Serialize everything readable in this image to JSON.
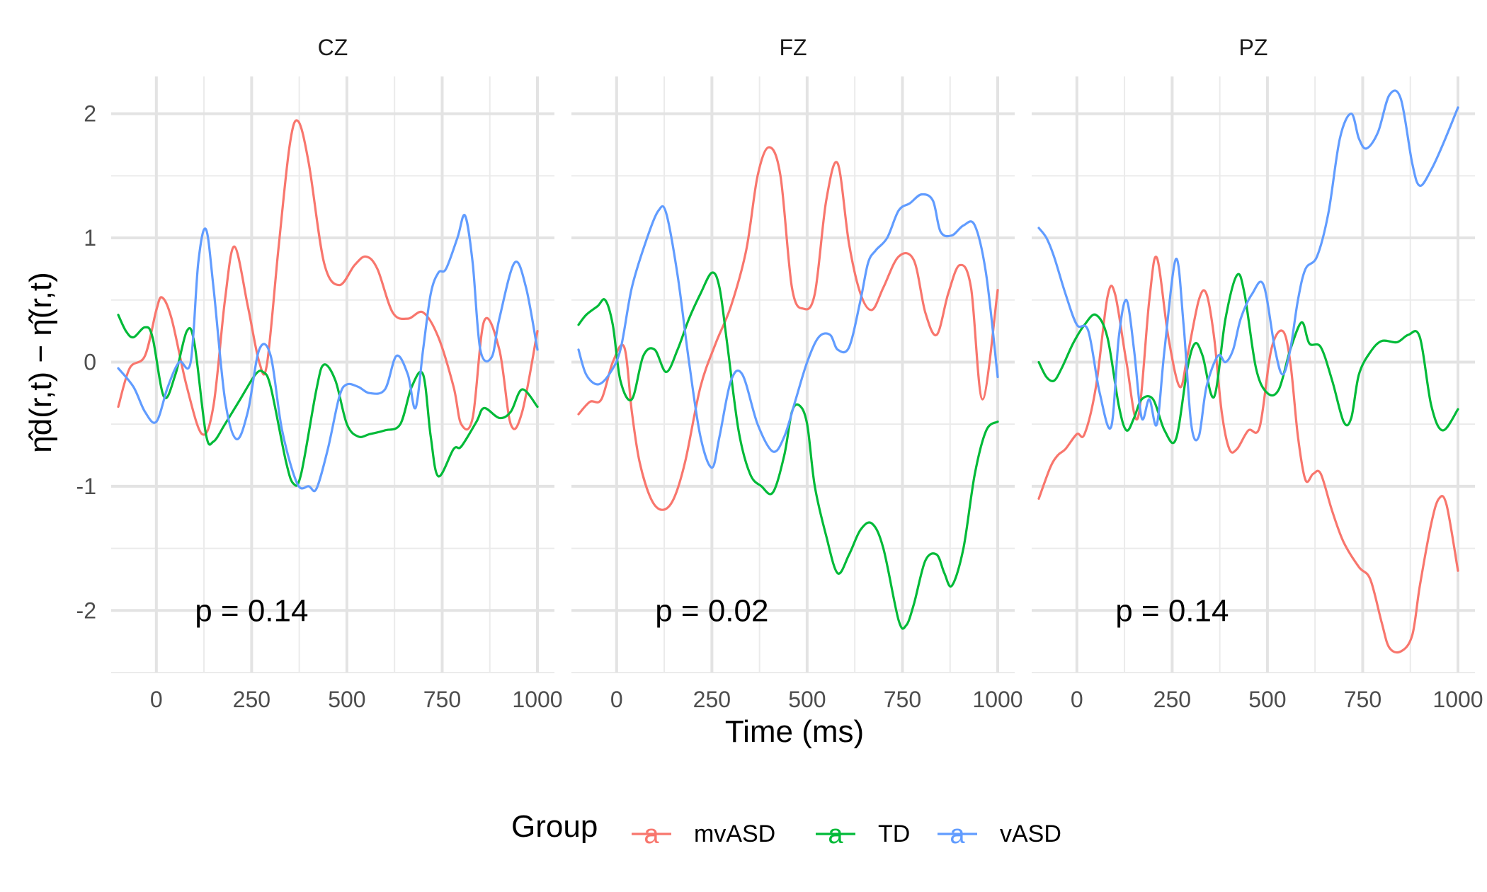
{
  "chart_data": {
    "type": "line",
    "facets": [
      "CZ",
      "FZ",
      "PZ"
    ],
    "xlabel": "Time (ms)",
    "ylabel": "η̂d(r,t) − η̂(r,t)",
    "xlim": [
      -100,
      1000
    ],
    "ylim": [
      -2.5,
      2.3
    ],
    "xticks": [
      0,
      250,
      500,
      750,
      1000
    ],
    "yticks": [
      -2,
      -1,
      0,
      1,
      2
    ],
    "grid": true,
    "legend": {
      "title": "Group",
      "position": "bottom",
      "key_glyph": "a"
    },
    "colors": {
      "mvASD": "#F8766D",
      "TD": "#00BA38",
      "vASD": "#619CFF"
    },
    "annotations": [
      {
        "facet": "CZ",
        "text": "p = 0.14"
      },
      {
        "facet": "FZ",
        "text": "p = 0.02"
      },
      {
        "facet": "PZ",
        "text": "p = 0.14"
      }
    ],
    "panels": [
      {
        "facet": "CZ",
        "series": [
          {
            "name": "mvASD",
            "x": [
              -100,
              -70,
              -30,
              0,
              15,
              40,
              80,
              120,
              150,
              180,
              205,
              240,
              270,
              290,
              320,
              350,
              372,
              400,
              440,
              480,
              520,
              550,
              580,
              620,
              660,
              700,
              740,
              780,
              800,
              830,
              860,
              900,
              930,
              960,
              1000
            ],
            "y": [
              -0.36,
              -0.05,
              0.05,
              0.42,
              0.52,
              0.35,
              -0.2,
              -0.58,
              -0.35,
              0.5,
              0.93,
              0.45,
              0.0,
              -0.02,
              0.9,
              1.75,
              1.94,
              1.6,
              0.8,
              0.62,
              0.78,
              0.85,
              0.75,
              0.4,
              0.35,
              0.4,
              0.2,
              -0.2,
              -0.5,
              -0.45,
              0.33,
              0.1,
              -0.5,
              -0.4,
              0.25
            ]
          },
          {
            "name": "TD",
            "x": [
              -100,
              -80,
              -60,
              -30,
              -10,
              20,
              50,
              80,
              100,
              130,
              150,
              180,
              220,
              260,
              280,
              300,
              340,
              360,
              380,
              420,
              440,
              470,
              500,
              530,
              560,
              600,
              640,
              670,
              700,
              720,
              740,
              780,
              800,
              840,
              860,
              900,
              930,
              960,
              1000
            ],
            "y": [
              0.38,
              0.25,
              0.2,
              0.28,
              0.2,
              -0.28,
              -0.1,
              0.25,
              0.15,
              -0.58,
              -0.64,
              -0.5,
              -0.3,
              -0.1,
              -0.08,
              -0.2,
              -0.8,
              -0.98,
              -0.9,
              -0.22,
              -0.02,
              -0.15,
              -0.5,
              -0.6,
              -0.58,
              -0.55,
              -0.5,
              -0.2,
              -0.1,
              -0.6,
              -0.92,
              -0.7,
              -0.68,
              -0.48,
              -0.37,
              -0.45,
              -0.4,
              -0.22,
              -0.36
            ]
          },
          {
            "name": "vASD",
            "x": [
              -100,
              -60,
              -30,
              0,
              30,
              60,
              90,
              110,
              130,
              150,
              180,
              210,
              240,
              270,
              300,
              330,
              370,
              400,
              420,
              450,
              480,
              500,
              530,
              560,
              600,
              630,
              660,
              680,
              700,
              720,
              740,
              760,
              790,
              810,
              830,
              850,
              880,
              900,
              940,
              970,
              1000
            ],
            "y": [
              -0.05,
              -0.2,
              -0.4,
              -0.48,
              -0.2,
              0.0,
              0.0,
              0.8,
              1.07,
              0.6,
              -0.3,
              -0.62,
              -0.4,
              0.1,
              0.05,
              -0.55,
              -0.98,
              -1.0,
              -1.02,
              -0.7,
              -0.28,
              -0.18,
              -0.2,
              -0.25,
              -0.22,
              0.05,
              -0.1,
              -0.37,
              0.1,
              0.55,
              0.72,
              0.75,
              1.0,
              1.18,
              0.8,
              0.1,
              0.04,
              0.35,
              0.8,
              0.6,
              0.1
            ]
          }
        ]
      },
      {
        "facet": "FZ",
        "series": [
          {
            "name": "mvASD",
            "x": [
              -100,
              -70,
              -40,
              -10,
              20,
              40,
              60,
              90,
              120,
              150,
              180,
              220,
              260,
              300,
              340,
              370,
              400,
              430,
              460,
              490,
              520,
              550,
              580,
              610,
              640,
              670,
              700,
              740,
              780,
              810,
              840,
              870,
              900,
              930,
              960,
              1000
            ],
            "y": [
              -0.42,
              -0.32,
              -0.3,
              0.0,
              0.12,
              -0.4,
              -0.8,
              -1.1,
              -1.19,
              -1.1,
              -0.8,
              -0.2,
              0.15,
              0.45,
              0.9,
              1.5,
              1.73,
              1.5,
              0.6,
              0.43,
              0.55,
              1.3,
              1.6,
              0.95,
              0.55,
              0.42,
              0.6,
              0.85,
              0.82,
              0.4,
              0.22,
              0.55,
              0.78,
              0.6,
              -0.3,
              0.58
            ]
          },
          {
            "name": "TD",
            "x": [
              -100,
              -80,
              -50,
              -30,
              -10,
              10,
              40,
              70,
              100,
              130,
              160,
              190,
              220,
              250,
              270,
              290,
              320,
              350,
              380,
              410,
              440,
              460,
              480,
              500,
              520,
              550,
              580,
              610,
              640,
              670,
              700,
              740,
              760,
              780,
              810,
              840,
              860,
              880,
              910,
              940,
              970,
              1000
            ],
            "y": [
              0.3,
              0.38,
              0.45,
              0.5,
              0.3,
              -0.15,
              -0.3,
              0.05,
              0.1,
              -0.08,
              0.1,
              0.35,
              0.55,
              0.72,
              0.6,
              0.15,
              -0.55,
              -0.9,
              -1.0,
              -1.05,
              -0.75,
              -0.4,
              -0.35,
              -0.5,
              -1.0,
              -1.4,
              -1.7,
              -1.55,
              -1.35,
              -1.3,
              -1.5,
              -2.08,
              -2.12,
              -1.95,
              -1.6,
              -1.55,
              -1.7,
              -1.8,
              -1.5,
              -0.9,
              -0.55,
              -0.48
            ]
          },
          {
            "name": "vASD",
            "x": [
              -100,
              -80,
              -50,
              -20,
              10,
              40,
              80,
              110,
              130,
              160,
              190,
              220,
              250,
              270,
              300,
              330,
              370,
              410,
              440,
              470,
              500,
              530,
              560,
              580,
              610,
              640,
              660,
              680,
              710,
              740,
              770,
              800,
              830,
              850,
              880,
              910,
              940,
              970,
              1000
            ],
            "y": [
              0.1,
              -0.1,
              -0.18,
              -0.1,
              0.1,
              0.6,
              1.0,
              1.22,
              1.2,
              0.7,
              0.0,
              -0.6,
              -0.85,
              -0.6,
              -0.15,
              -0.1,
              -0.5,
              -0.72,
              -0.6,
              -0.3,
              0.0,
              0.2,
              0.22,
              0.1,
              0.12,
              0.5,
              0.8,
              0.9,
              1.0,
              1.22,
              1.28,
              1.35,
              1.3,
              1.05,
              1.02,
              1.1,
              1.1,
              0.7,
              -0.12
            ]
          }
        ]
      },
      {
        "facet": "PZ",
        "series": [
          {
            "name": "mvASD",
            "x": [
              -100,
              -70,
              -50,
              -30,
              0,
              20,
              50,
              80,
              100,
              130,
              160,
              190,
              210,
              240,
              270,
              290,
              320,
              340,
              360,
              380,
              400,
              420,
              450,
              480,
              510,
              540,
              560,
              580,
              600,
              620,
              640,
              670,
              700,
              740,
              770,
              800,
              820,
              850,
              880,
              900,
              930,
              950,
              970,
              1000
            ],
            "y": [
              -1.1,
              -0.85,
              -0.75,
              -0.7,
              -0.58,
              -0.58,
              -0.2,
              0.52,
              0.55,
              0.0,
              -0.45,
              0.5,
              0.84,
              0.2,
              -0.2,
              0.05,
              0.5,
              0.55,
              0.2,
              -0.4,
              -0.7,
              -0.7,
              -0.55,
              -0.52,
              0.1,
              0.25,
              0.0,
              -0.6,
              -0.95,
              -0.9,
              -0.9,
              -1.2,
              -1.45,
              -1.65,
              -1.75,
              -2.1,
              -2.3,
              -2.33,
              -2.2,
              -1.8,
              -1.3,
              -1.1,
              -1.15,
              -1.68
            ]
          },
          {
            "name": "TD",
            "x": [
              -100,
              -80,
              -60,
              -40,
              -10,
              20,
              50,
              80,
              110,
              130,
              150,
              170,
              200,
              230,
              260,
              290,
              310,
              330,
              360,
              390,
              420,
              440,
              470,
              500,
              530,
              560,
              590,
              610,
              640,
              670,
              700,
              720,
              740,
              770,
              800,
              840,
              870,
              900,
              930,
              960,
              1000
            ],
            "y": [
              0.0,
              -0.12,
              -0.15,
              -0.05,
              0.15,
              0.3,
              0.38,
              0.2,
              -0.35,
              -0.55,
              -0.45,
              -0.3,
              -0.3,
              -0.55,
              -0.62,
              -0.05,
              0.15,
              0.05,
              -0.28,
              0.35,
              0.7,
              0.55,
              -0.05,
              -0.25,
              -0.22,
              0.1,
              0.32,
              0.15,
              0.12,
              -0.15,
              -0.48,
              -0.45,
              -0.1,
              0.08,
              0.17,
              0.16,
              0.22,
              0.2,
              -0.35,
              -0.55,
              -0.38
            ]
          },
          {
            "name": "vASD",
            "x": [
              -100,
              -80,
              -60,
              -30,
              0,
              30,
              60,
              90,
              110,
              130,
              150,
              170,
              190,
              210,
              230,
              260,
              280,
              300,
              320,
              340,
              370,
              390,
              410,
              430,
              460,
              490,
              520,
              540,
              560,
              580,
              600,
              630,
              660,
              690,
              720,
              740,
              760,
              790,
              820,
              850,
              880,
              900,
              930,
              960,
              1000
            ],
            "y": [
              1.08,
              1.0,
              0.85,
              0.55,
              0.3,
              0.25,
              -0.25,
              -0.52,
              0.2,
              0.5,
              0.1,
              -0.45,
              -0.3,
              -0.5,
              0.1,
              0.83,
              0.3,
              -0.5,
              -0.6,
              -0.2,
              0.05,
              0.0,
              0.1,
              0.35,
              0.55,
              0.62,
              0.1,
              -0.1,
              0.1,
              0.5,
              0.75,
              0.85,
              1.2,
              1.8,
              2.0,
              1.8,
              1.72,
              1.85,
              2.15,
              2.12,
              1.6,
              1.42,
              1.55,
              1.75,
              2.05
            ]
          }
        ]
      }
    ]
  }
}
